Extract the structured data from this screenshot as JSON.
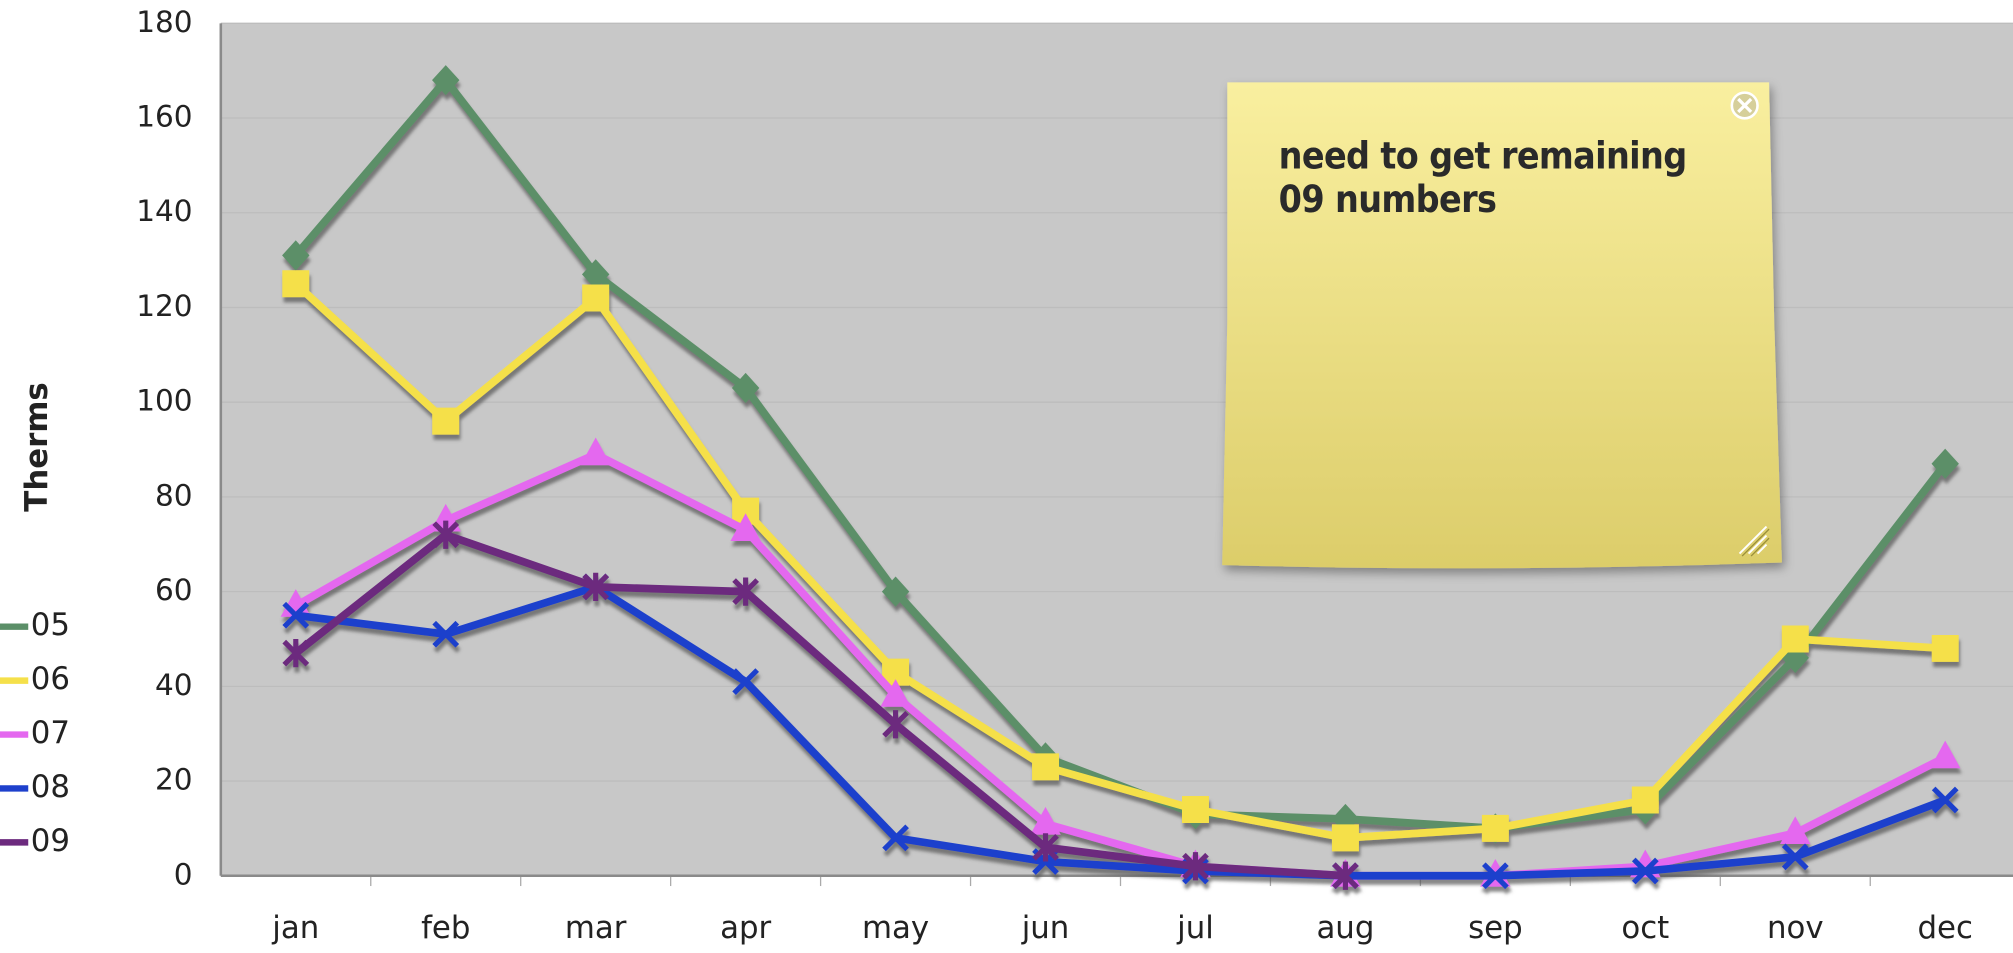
{
  "chart_data": {
    "type": "line",
    "y_label": "Therms",
    "categories": [
      "jan",
      "feb",
      "mar",
      "apr",
      "may",
      "jun",
      "jul",
      "aug",
      "sep",
      "oct",
      "nov",
      "dec"
    ],
    "ylim": [
      0,
      180
    ],
    "yticks": [
      0,
      20,
      40,
      60,
      80,
      100,
      120,
      140,
      160,
      180
    ],
    "grid": true,
    "series": [
      {
        "name": "05",
        "color": "#5b8f68",
        "marker": "diamond",
        "values": [
          131,
          168,
          127,
          103,
          60,
          25,
          13,
          12,
          10,
          14,
          46,
          87
        ]
      },
      {
        "name": "06",
        "color": "#f5e04a",
        "marker": "square",
        "values": [
          125,
          96,
          122,
          77,
          43,
          23,
          14,
          8,
          10,
          16,
          50,
          48
        ]
      },
      {
        "name": "07",
        "color": "#e468ef",
        "marker": "triangle",
        "values": [
          57,
          75,
          89,
          73,
          38,
          11,
          2,
          0,
          0,
          2,
          9,
          25
        ]
      },
      {
        "name": "08",
        "color": "#1e40cc",
        "marker": "x",
        "values": [
          55,
          51,
          61,
          41,
          8,
          3,
          1,
          0,
          0,
          1,
          4,
          16
        ]
      },
      {
        "name": "09",
        "color": "#6c2a7e",
        "marker": "star",
        "values": [
          47,
          72,
          61,
          60,
          32,
          6,
          2,
          0,
          null,
          null,
          null,
          null
        ]
      }
    ]
  },
  "note": {
    "text": "need to get remaining 09 numbers"
  }
}
